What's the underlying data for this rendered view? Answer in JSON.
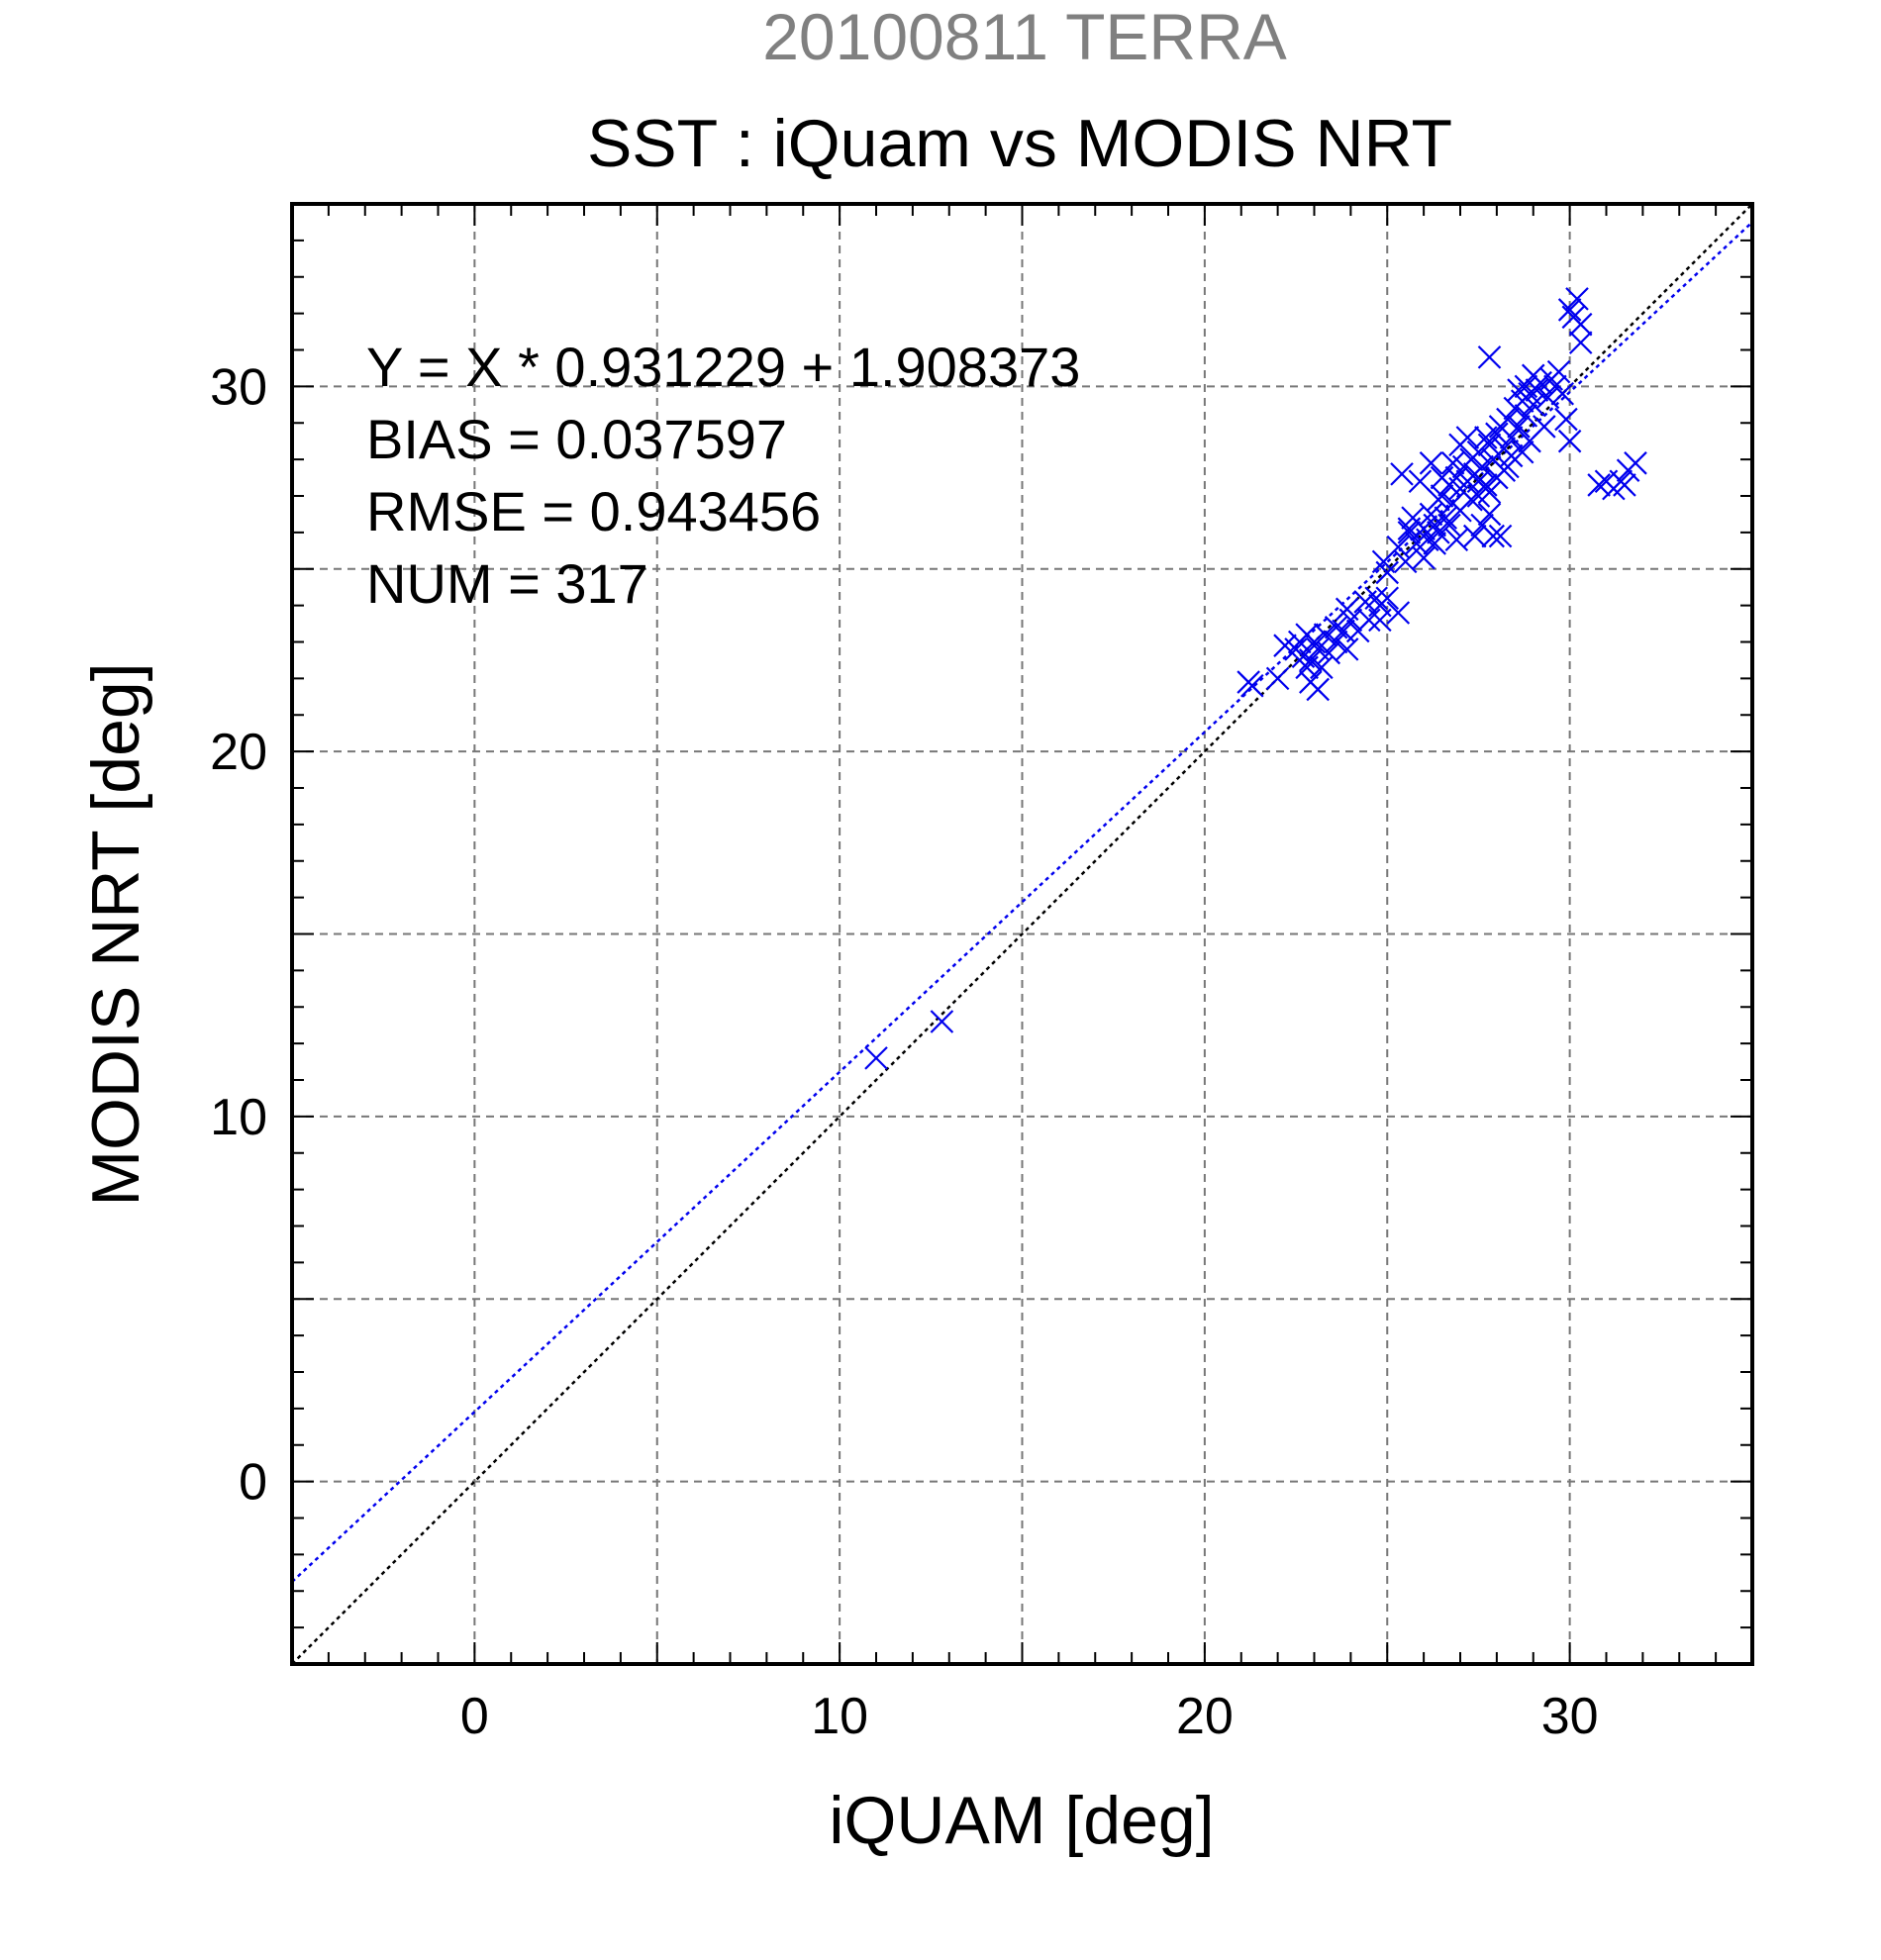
{
  "chart_data": {
    "type": "scatter",
    "supertitle": "20100811 TERRA",
    "title": "SST : iQuam vs MODIS NRT",
    "xlabel": "iQUAM [deg]",
    "ylabel": "MODIS NRT [deg]",
    "xlim": [
      -5,
      35
    ],
    "ylim": [
      -5,
      35
    ],
    "xticks": [
      0,
      10,
      20,
      30
    ],
    "yticks": [
      0,
      10,
      20,
      30
    ],
    "grid": true,
    "stats": [
      "Y = X * 0.931229 + 1.908373",
      "BIAS = 0.037597",
      "RMSE = 0.943456",
      "NUM = 317"
    ],
    "lines": [
      {
        "kind": "fit",
        "slope": 0.931229,
        "intercept": 1.908373,
        "color": "#0000ee",
        "style": "dotted"
      },
      {
        "kind": "one-to-one",
        "slope": 1,
        "intercept": 0,
        "color": "#000000",
        "style": "dotted"
      }
    ],
    "series": [
      {
        "marker": "x",
        "color": "#0000ee",
        "points": [
          [
            11.0,
            11.6
          ],
          [
            12.8,
            12.6
          ],
          [
            21.2,
            21.9
          ],
          [
            21.3,
            21.8
          ],
          [
            22.0,
            22.0
          ],
          [
            22.5,
            22.8
          ],
          [
            22.6,
            23.0
          ],
          [
            22.7,
            22.6
          ],
          [
            22.8,
            22.3
          ],
          [
            22.9,
            22.5
          ],
          [
            22.9,
            21.9
          ],
          [
            23.0,
            23.0
          ],
          [
            23.1,
            22.8
          ],
          [
            23.1,
            21.7
          ],
          [
            23.3,
            23.2
          ],
          [
            23.4,
            22.7
          ],
          [
            23.6,
            23.4
          ],
          [
            23.6,
            23.0
          ],
          [
            23.8,
            23.3
          ],
          [
            23.9,
            22.8
          ],
          [
            24.0,
            23.6
          ],
          [
            24.2,
            23.3
          ],
          [
            24.5,
            23.6
          ],
          [
            24.7,
            24.2
          ],
          [
            24.8,
            24.0
          ],
          [
            24.8,
            23.6
          ],
          [
            25.0,
            24.2
          ],
          [
            25.3,
            23.8
          ],
          [
            25.0,
            24.9
          ],
          [
            25.3,
            25.6
          ],
          [
            25.5,
            25.2
          ],
          [
            25.6,
            26.0
          ],
          [
            25.8,
            25.7
          ],
          [
            26.0,
            26.1
          ],
          [
            26.1,
            25.8
          ],
          [
            26.2,
            26.5
          ],
          [
            26.3,
            25.7
          ],
          [
            26.4,
            26.9
          ],
          [
            26.5,
            27.0
          ],
          [
            26.6,
            26.4
          ],
          [
            26.7,
            27.3
          ],
          [
            26.8,
            26.8
          ],
          [
            26.9,
            27.5
          ],
          [
            27.0,
            27.2
          ],
          [
            27.0,
            26.6
          ],
          [
            27.1,
            27.8
          ],
          [
            27.2,
            27.4
          ],
          [
            27.3,
            28.0
          ],
          [
            27.3,
            26.9
          ],
          [
            27.4,
            27.6
          ],
          [
            27.5,
            28.2
          ],
          [
            27.5,
            27.0
          ],
          [
            27.6,
            27.8
          ],
          [
            27.7,
            27.3
          ],
          [
            27.8,
            28.4
          ],
          [
            27.8,
            26.5
          ],
          [
            27.9,
            28.0
          ],
          [
            28.0,
            28.7
          ],
          [
            28.0,
            27.5
          ],
          [
            28.1,
            28.9
          ],
          [
            28.2,
            28.3
          ],
          [
            28.3,
            29.1
          ],
          [
            28.4,
            28.6
          ],
          [
            28.5,
            29.4
          ],
          [
            28.6,
            28.9
          ],
          [
            28.7,
            29.6
          ],
          [
            28.8,
            29.2
          ],
          [
            28.9,
            29.8
          ],
          [
            29.0,
            29.5
          ],
          [
            29.1,
            29.9
          ],
          [
            29.2,
            30.1
          ],
          [
            29.4,
            29.7
          ],
          [
            29.5,
            30.2
          ],
          [
            29.6,
            30.0
          ],
          [
            29.8,
            29.8
          ],
          [
            29.9,
            29.1
          ],
          [
            30.0,
            28.5
          ],
          [
            30.0,
            32.1
          ],
          [
            30.1,
            31.9
          ],
          [
            30.2,
            32.4
          ],
          [
            30.3,
            31.7
          ],
          [
            30.3,
            31.2
          ],
          [
            27.8,
            30.8
          ],
          [
            27.9,
            25.9
          ],
          [
            26.9,
            25.8
          ],
          [
            26.3,
            26.2
          ],
          [
            25.9,
            27.4
          ],
          [
            25.4,
            27.6
          ],
          [
            26.2,
            27.9
          ],
          [
            27.4,
            25.9
          ],
          [
            28.1,
            25.9
          ],
          [
            27.6,
            26.2
          ],
          [
            26.0,
            25.3
          ],
          [
            25.7,
            26.4
          ],
          [
            27.2,
            28.6
          ],
          [
            28.3,
            27.8
          ],
          [
            28.6,
            29.9
          ],
          [
            28.9,
            28.5
          ],
          [
            29.3,
            28.9
          ],
          [
            30.8,
            27.3
          ],
          [
            31.0,
            27.4
          ],
          [
            31.2,
            27.2
          ],
          [
            31.4,
            27.4
          ],
          [
            31.6,
            27.7
          ],
          [
            31.8,
            27.9
          ],
          [
            31.5,
            27.3
          ],
          [
            27.5,
            27.4
          ],
          [
            27.7,
            28.6
          ],
          [
            28.2,
            27.7
          ],
          [
            26.8,
            27.9
          ],
          [
            26.5,
            27.5
          ],
          [
            27.0,
            28.4
          ],
          [
            27.8,
            27.1
          ],
          [
            28.4,
            28.1
          ],
          [
            28.7,
            28.2
          ],
          [
            29.0,
            30.3
          ],
          [
            26.4,
            26.0
          ],
          [
            26.7,
            26.2
          ],
          [
            25.6,
            26.1
          ],
          [
            24.9,
            25.2
          ],
          [
            24.4,
            24.1
          ],
          [
            23.9,
            23.9
          ],
          [
            23.2,
            22.3
          ],
          [
            22.8,
            23.2
          ],
          [
            22.2,
            22.9
          ],
          [
            28.8,
            30.0
          ],
          [
            29.7,
            30.4
          ]
        ]
      }
    ]
  }
}
